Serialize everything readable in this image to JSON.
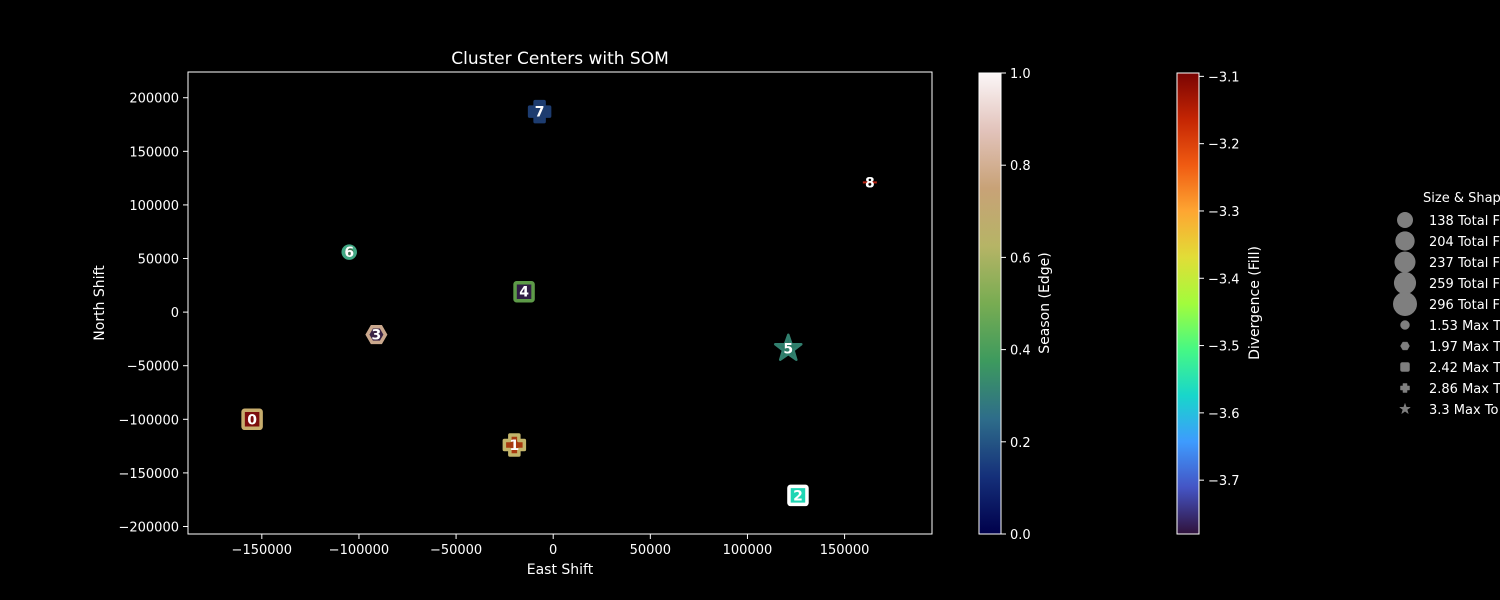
{
  "chart_data": {
    "type": "scatter",
    "title": "Cluster Centers with SOM",
    "xlabel": "East Shift",
    "ylabel": "North Shift",
    "xlim": [
      -188000,
      195000
    ],
    "ylim": [
      -207000,
      224000
    ],
    "xticks": [
      -150000,
      -100000,
      -50000,
      0,
      50000,
      100000,
      150000
    ],
    "xtick_labels": [
      "−150000",
      "−100000",
      "−50000",
      "0",
      "50000",
      "100000",
      "150000"
    ],
    "yticks": [
      -200000,
      -150000,
      -100000,
      -50000,
      0,
      50000,
      100000,
      150000,
      200000
    ],
    "ytick_labels": [
      "−200000",
      "−150000",
      "−100000",
      "−50000",
      "0",
      "50000",
      "100000",
      "150000",
      "200000"
    ],
    "grid": false,
    "points": [
      {
        "label": "0",
        "x": -155000,
        "y": -100000,
        "marker": "square",
        "fill": "#7d0d0d",
        "edge": "#c7ad6d"
      },
      {
        "label": "1",
        "x": -20000,
        "y": -124000,
        "marker": "plus",
        "fill": "#a83a10",
        "edge": "#c3b56b"
      },
      {
        "label": "2",
        "x": 126000,
        "y": -171000,
        "marker": "square",
        "fill": "#1fd6b4",
        "edge": "#ffffff"
      },
      {
        "label": "3",
        "x": -91000,
        "y": -21000,
        "marker": "hexagon",
        "fill": "#3a2345",
        "edge": "#caa88d"
      },
      {
        "label": "4",
        "x": -15000,
        "y": 19000,
        "marker": "square",
        "fill": "#2f1c44",
        "edge": "#5d9a48"
      },
      {
        "label": "5",
        "x": 121000,
        "y": -34000,
        "marker": "star",
        "fill": "#2b7a66",
        "edge": "#317f6e"
      },
      {
        "label": "6",
        "x": -105000,
        "y": 56000,
        "marker": "circle",
        "fill": "#3d6f4e",
        "edge": "#41a884"
      },
      {
        "label": "7",
        "x": -7000,
        "y": 187000,
        "marker": "plus",
        "fill": "#1e3c6e",
        "edge": "#1d3c70"
      },
      {
        "label": "8",
        "x": 163000,
        "y": 121000,
        "marker": "dash",
        "fill": "#b02a12",
        "edge": "#c02414"
      }
    ],
    "colorbars": [
      {
        "label": "Season (Edge)",
        "min": 0.0,
        "max": 1.0,
        "ticks": [
          0.0,
          0.2,
          0.4,
          0.6,
          0.8,
          1.0
        ],
        "tick_labels": [
          "0.0",
          "0.2",
          "0.4",
          "0.6",
          "0.8",
          "1.0"
        ],
        "colors": [
          "#00004b",
          "#15307a",
          "#2e6d8a",
          "#3d9a5e",
          "#78ac52",
          "#b6b466",
          "#c8a277",
          "#e2c3bb",
          "#fbf6f7"
        ]
      },
      {
        "label": "Divergence (Fill)",
        "min": -3.78,
        "max": -3.095,
        "ticks": [
          -3.7,
          -3.6,
          -3.5,
          -3.4,
          -3.3,
          -3.2,
          -3.1
        ],
        "tick_labels": [
          "−3.7",
          "−3.6",
          "−3.5",
          "−3.4",
          "−3.3",
          "−3.2",
          "−3.1"
        ],
        "colors": [
          "#30123b",
          "#4454c4",
          "#3e9bfe",
          "#18d6cb",
          "#46f884",
          "#a2fc3c",
          "#e1dd37",
          "#fea632",
          "#f05b12",
          "#c42503",
          "#7a0403"
        ]
      }
    ],
    "legend": {
      "title": "Size & Shap",
      "placement": "right",
      "size_entries": [
        "138 Total F",
        "204 Total F",
        "237 Total F",
        "259 Total F",
        "296 Total F"
      ],
      "size_values": [
        138,
        204,
        237,
        259,
        296
      ],
      "shape_entries": [
        "1.53 Max T",
        "1.97 Max T",
        "2.42 Max T",
        "2.86 Max T",
        "3.3 Max To"
      ],
      "shape_markers": [
        "circle",
        "hexagon",
        "square",
        "plus",
        "star"
      ]
    }
  }
}
